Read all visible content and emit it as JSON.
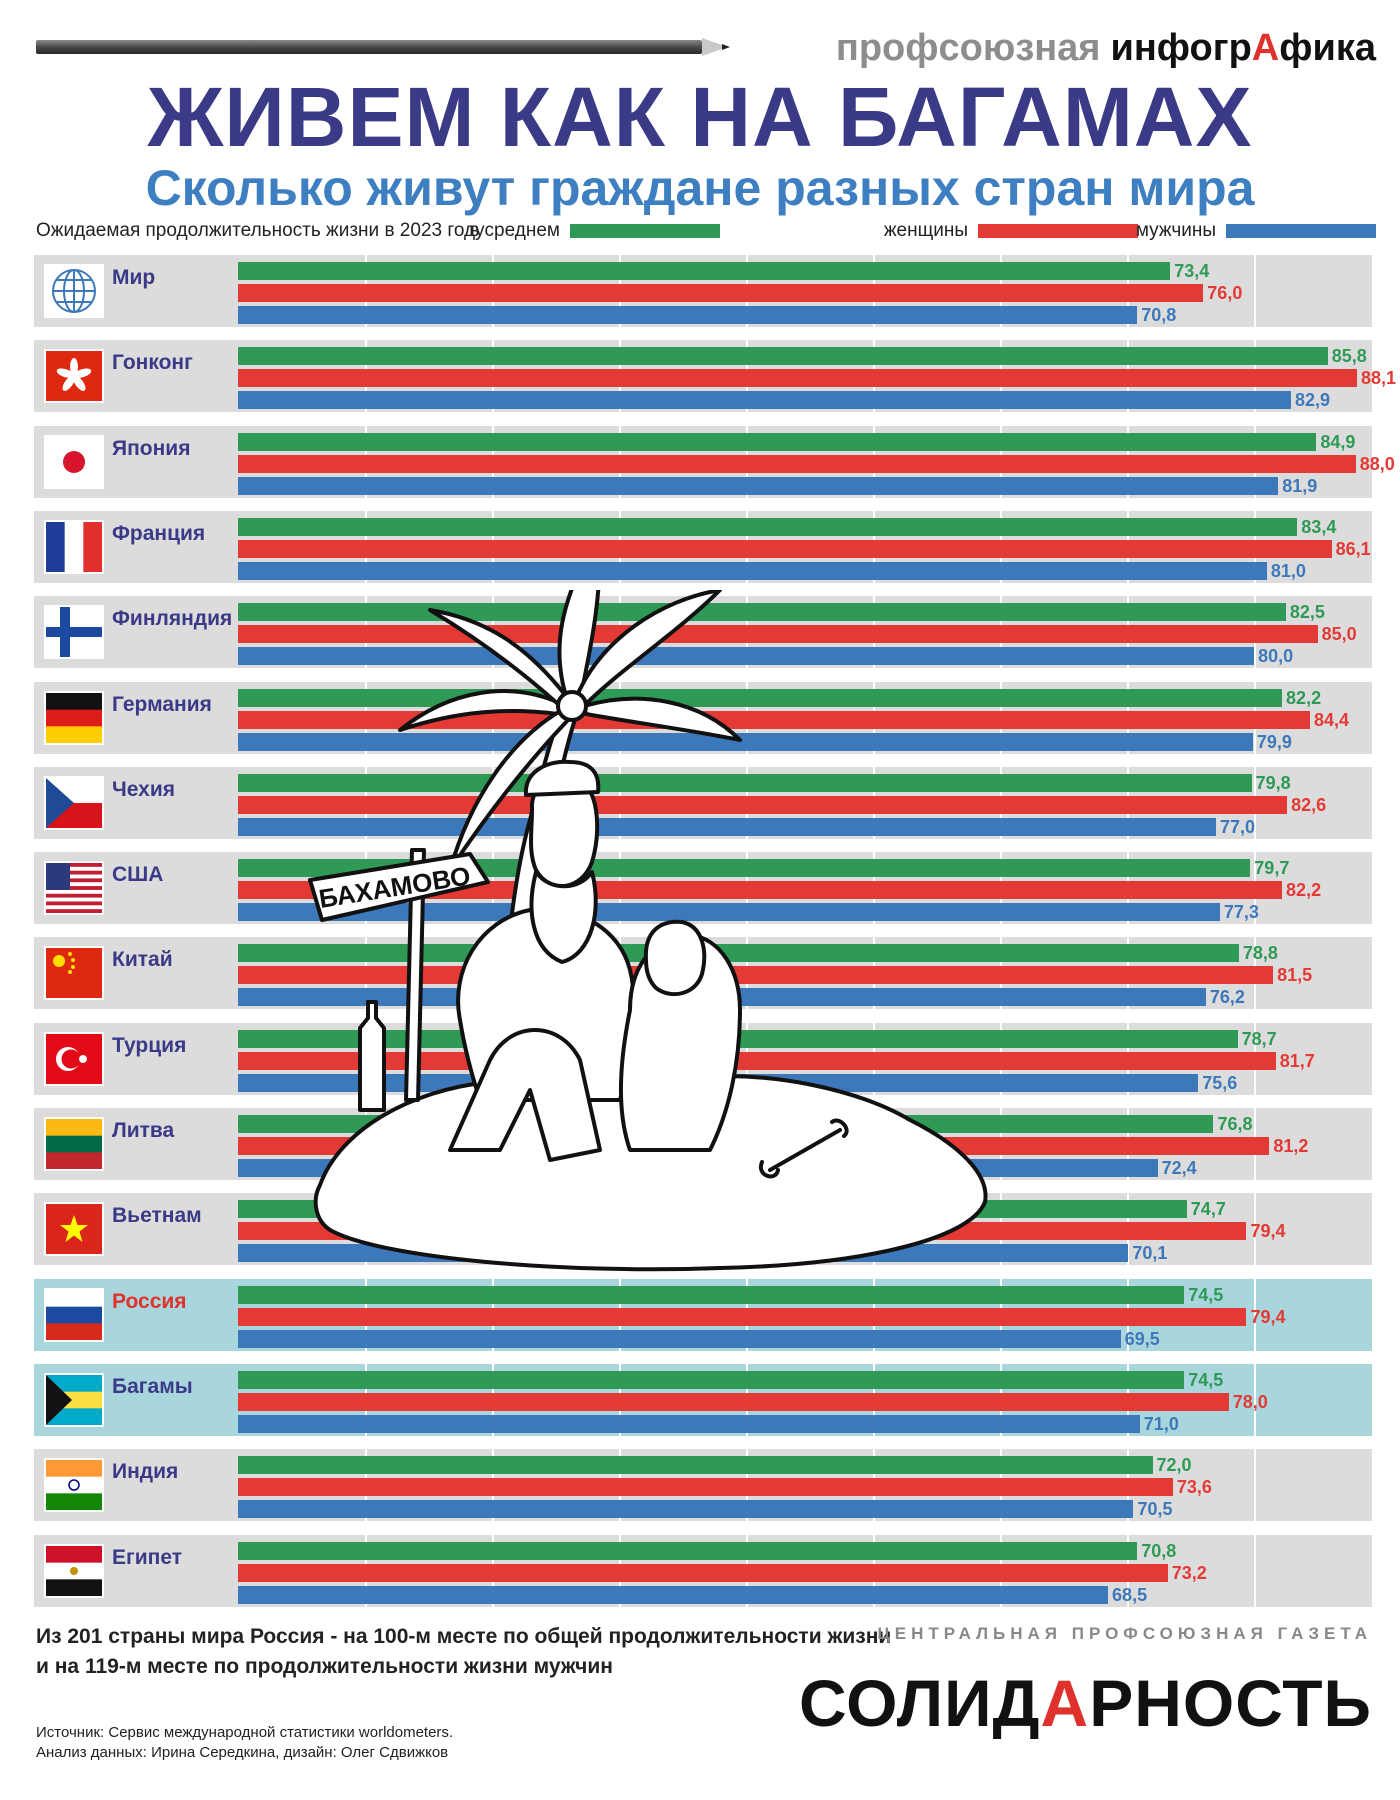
{
  "brand": {
    "left": "профсоюзная",
    "right_part1": "инфогр",
    "right_accent": "А",
    "right_part2": "фика"
  },
  "title": "ЖИВЕМ КАК НА БАГАМАХ",
  "subtitle": "Сколько живут граждане разных стран мира",
  "colors": {
    "avg": "#2f9a55",
    "female": "#e43a35",
    "male": "#3d78bb",
    "title": "#3b3a86",
    "subtitle": "#3d7fc1",
    "highlight": "#a9d6dd"
  },
  "chart_data": {
    "type": "bar",
    "orientation": "horizontal",
    "title": "Ожидаемая продолжительность жизни в 2023 году",
    "grid": true,
    "categories": [
      "Мир",
      "Гонконг",
      "Япония",
      "Франция",
      "Финляндия",
      "Германия",
      "Чехия",
      "США",
      "Китай",
      "Турция",
      "Литва",
      "Вьетнам",
      "Россия",
      "Багамы",
      "Индия",
      "Египет"
    ],
    "series": [
      {
        "name": "в среднем",
        "values": [
          73.4,
          85.8,
          84.9,
          83.4,
          82.5,
          82.2,
          79.8,
          79.7,
          78.8,
          78.7,
          76.8,
          74.7,
          74.5,
          74.5,
          72.0,
          70.8
        ]
      },
      {
        "name": "женщины",
        "values": [
          76.0,
          88.1,
          88.0,
          86.1,
          85.0,
          84.4,
          82.6,
          82.2,
          81.5,
          81.7,
          81.2,
          79.4,
          79.4,
          78.0,
          73.6,
          73.2
        ]
      },
      {
        "name": "мужчины",
        "values": [
          70.8,
          82.9,
          81.9,
          81.0,
          80.0,
          79.9,
          77.0,
          77.3,
          76.2,
          75.6,
          72.4,
          70.1,
          69.5,
          71.0,
          70.5,
          68.5
        ]
      }
    ],
    "labels": {
      "avg": [
        "73,4",
        "85,8",
        "84,9",
        "83,4",
        "82,5",
        "82,2",
        "79,8",
        "79,7",
        "78,8",
        "78,7",
        "76,8",
        "74,7",
        "74,5",
        "74,5",
        "72,0",
        "70,8"
      ],
      "female": [
        "76,0",
        "88,1",
        "88,0",
        "86,1",
        "85,0",
        "84,4",
        "82,6",
        "82,2",
        "81,5",
        "81,7",
        "81,2",
        "79,4",
        "79,4",
        "78,0",
        "73,6",
        "73,2"
      ],
      "male": [
        "70,8",
        "82,9",
        "81,9",
        "81,0",
        "80,0",
        "79,9",
        "77,0",
        "77,3",
        "76,2",
        "75,6",
        "72,4",
        "70,1",
        "69,5",
        "71,0",
        "70,5",
        "68,5"
      ]
    },
    "flags": [
      "globe",
      "hongkong",
      "japan",
      "france",
      "finland",
      "germany",
      "czech",
      "usa",
      "china",
      "turkey",
      "lithuania",
      "vietnam",
      "russia",
      "bahamas",
      "india",
      "egypt"
    ],
    "highlighted": [
      "Россия",
      "Багамы"
    ]
  },
  "illustration": {
    "sign_text": "БАХАМОВО"
  },
  "note": "Из 201 страны мира Россия - на 100-м месте по общей продолжительности жизни и на 119-м месте по продолжительности жизни мужчин",
  "source": {
    "line1": "Источник: Сервис международной статистики worldometers.",
    "line2": "Анализ данных: Ирина Середкина, дизайн: Олег Сдвижков"
  },
  "paper": {
    "caption": "ЦЕНТРАЛЬНАЯ ПРОФСОЮЗНАЯ ГАЗЕТА",
    "name_part1": "СОЛИД",
    "name_accent": "А",
    "name_part2": "РНОСТЬ"
  }
}
